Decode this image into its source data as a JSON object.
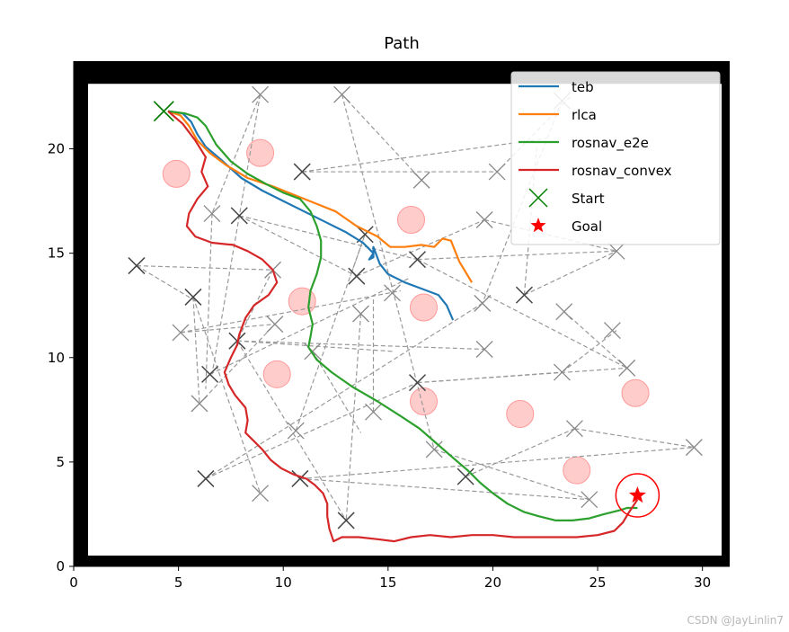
{
  "chart_data": {
    "type": "line",
    "title": "Path",
    "xlabel": "",
    "ylabel": "",
    "xlim": [
      0,
      31.3
    ],
    "ylim": [
      0,
      24.2
    ],
    "xticks": [
      0,
      5,
      10,
      15,
      20,
      25,
      30
    ],
    "yticks": [
      0,
      5,
      10,
      15,
      20
    ],
    "grid": false,
    "legend_position": "top-right",
    "map_bounds": {
      "x": [
        0.6,
        31.0
      ],
      "y": [
        0,
        23.2
      ]
    },
    "series": [
      {
        "name": "teb",
        "color": "#1f77b4",
        "points": [
          [
            4.5,
            21.8
          ],
          [
            5.2,
            21.7
          ],
          [
            5.6,
            21.3
          ],
          [
            5.9,
            20.7
          ],
          [
            6.3,
            20.1
          ],
          [
            7.0,
            19.5
          ],
          [
            8.0,
            18.6
          ],
          [
            9.0,
            18.0
          ],
          [
            10.0,
            17.5
          ],
          [
            11.0,
            17.0
          ],
          [
            12.0,
            16.5
          ],
          [
            13.0,
            16.0
          ],
          [
            13.8,
            15.5
          ],
          [
            14.3,
            15.0
          ],
          [
            14.1,
            14.7
          ],
          [
            14.3,
            14.8
          ],
          [
            14.3,
            15.3
          ],
          [
            14.6,
            14.5
          ],
          [
            15.0,
            14.0
          ],
          [
            15.8,
            13.6
          ],
          [
            16.6,
            13.3
          ],
          [
            17.4,
            13.0
          ],
          [
            17.8,
            12.5
          ],
          [
            18.1,
            11.8
          ]
        ]
      },
      {
        "name": "rlca",
        "color": "#ff7f0e",
        "points": [
          [
            4.5,
            21.8
          ],
          [
            5.1,
            21.6
          ],
          [
            5.5,
            21.1
          ],
          [
            5.9,
            20.4
          ],
          [
            6.5,
            19.8
          ],
          [
            7.3,
            19.2
          ],
          [
            8.3,
            18.6
          ],
          [
            9.5,
            18.2
          ],
          [
            10.5,
            17.8
          ],
          [
            11.5,
            17.4
          ],
          [
            12.5,
            17.0
          ],
          [
            13.5,
            16.3
          ],
          [
            14.5,
            15.8
          ],
          [
            15.1,
            15.3
          ],
          [
            15.8,
            15.3
          ],
          [
            16.6,
            15.4
          ],
          [
            17.2,
            15.3
          ],
          [
            17.6,
            15.7
          ],
          [
            18.0,
            15.6
          ],
          [
            18.4,
            14.6
          ],
          [
            18.7,
            14.1
          ],
          [
            19.0,
            13.6
          ]
        ]
      },
      {
        "name": "rosnav_e2e",
        "color": "#2ca02c",
        "points": [
          [
            4.5,
            21.8
          ],
          [
            5.3,
            21.7
          ],
          [
            5.9,
            21.5
          ],
          [
            6.3,
            21.1
          ],
          [
            6.8,
            20.2
          ],
          [
            7.5,
            19.4
          ],
          [
            8.3,
            18.8
          ],
          [
            9.2,
            18.3
          ],
          [
            10.0,
            17.9
          ],
          [
            10.8,
            17.6
          ],
          [
            11.3,
            17.0
          ],
          [
            11.6,
            16.3
          ],
          [
            11.8,
            15.6
          ],
          [
            11.8,
            14.8
          ],
          [
            11.6,
            14.0
          ],
          [
            11.3,
            13.2
          ],
          [
            11.2,
            12.4
          ],
          [
            11.4,
            11.6
          ],
          [
            11.3,
            11.0
          ],
          [
            11.2,
            10.5
          ],
          [
            11.6,
            9.9
          ],
          [
            12.3,
            9.3
          ],
          [
            13.3,
            8.6
          ],
          [
            14.5,
            7.9
          ],
          [
            15.6,
            7.2
          ],
          [
            16.5,
            6.6
          ],
          [
            17.3,
            5.9
          ],
          [
            18.1,
            5.2
          ],
          [
            18.8,
            4.6
          ],
          [
            19.4,
            4.0
          ],
          [
            20.0,
            3.5
          ],
          [
            20.7,
            3.0
          ],
          [
            21.5,
            2.6
          ],
          [
            22.2,
            2.4
          ],
          [
            23.0,
            2.2
          ],
          [
            23.8,
            2.2
          ],
          [
            24.6,
            2.3
          ],
          [
            25.3,
            2.5
          ],
          [
            26.1,
            2.7
          ],
          [
            26.4,
            2.8
          ],
          [
            26.9,
            2.8
          ]
        ]
      },
      {
        "name": "rosnav_convex",
        "color": "#d62728",
        "points": [
          [
            4.5,
            21.8
          ],
          [
            5.2,
            21.2
          ],
          [
            5.8,
            20.4
          ],
          [
            6.3,
            19.6
          ],
          [
            6.1,
            18.9
          ],
          [
            6.4,
            18.2
          ],
          [
            5.9,
            17.6
          ],
          [
            5.5,
            16.9
          ],
          [
            5.4,
            16.3
          ],
          [
            5.8,
            15.8
          ],
          [
            6.6,
            15.5
          ],
          [
            7.6,
            15.4
          ],
          [
            8.3,
            15.1
          ],
          [
            9.0,
            14.7
          ],
          [
            9.5,
            14.2
          ],
          [
            9.7,
            13.6
          ],
          [
            9.3,
            13.0
          ],
          [
            8.6,
            12.5
          ],
          [
            8.2,
            11.9
          ],
          [
            7.9,
            11.1
          ],
          [
            7.8,
            10.6
          ],
          [
            7.5,
            10.0
          ],
          [
            7.2,
            9.3
          ],
          [
            7.4,
            8.7
          ],
          [
            7.7,
            8.2
          ],
          [
            8.2,
            7.6
          ],
          [
            8.3,
            7.0
          ],
          [
            8.2,
            6.4
          ],
          [
            8.6,
            6.0
          ],
          [
            9.0,
            5.6
          ],
          [
            9.4,
            5.1
          ],
          [
            9.9,
            4.7
          ],
          [
            10.5,
            4.4
          ],
          [
            11.1,
            4.2
          ],
          [
            11.5,
            3.9
          ],
          [
            11.9,
            3.5
          ],
          [
            12.1,
            3.0
          ],
          [
            12.1,
            2.4
          ],
          [
            12.2,
            1.8
          ],
          [
            12.4,
            1.2
          ],
          [
            12.8,
            1.4
          ],
          [
            13.6,
            1.4
          ],
          [
            14.5,
            1.3
          ],
          [
            15.3,
            1.2
          ],
          [
            16.1,
            1.4
          ],
          [
            17.0,
            1.5
          ],
          [
            18.0,
            1.4
          ],
          [
            19.0,
            1.5
          ],
          [
            20.0,
            1.5
          ],
          [
            21.0,
            1.4
          ],
          [
            22.0,
            1.4
          ],
          [
            23.0,
            1.4
          ],
          [
            24.0,
            1.4
          ],
          [
            25.0,
            1.5
          ],
          [
            25.8,
            1.7
          ],
          [
            26.2,
            2.1
          ],
          [
            26.5,
            2.6
          ],
          [
            26.9,
            3.2
          ]
        ]
      }
    ],
    "start": {
      "name": "Start",
      "x": 4.3,
      "y": 21.8,
      "color": "#008000",
      "marker": "x"
    },
    "goal": {
      "name": "Goal",
      "x": 26.9,
      "y": 3.4,
      "color": "#ff0000",
      "marker": "star",
      "radius": 1.0
    },
    "obstacles": {
      "color": "#ff9999",
      "radius": 0.65,
      "points": [
        [
          4.9,
          18.8
        ],
        [
          8.9,
          19.8
        ],
        [
          16.1,
          16.6
        ],
        [
          10.9,
          12.7
        ],
        [
          16.7,
          12.4
        ],
        [
          9.7,
          9.2
        ],
        [
          16.7,
          7.9
        ],
        [
          21.3,
          7.3
        ],
        [
          24.0,
          4.6
        ],
        [
          26.8,
          8.3
        ]
      ]
    },
    "waypoints": {
      "color": "#7f7f7f",
      "dark": [
        [
          4.3,
          21.8
        ],
        [
          10.9,
          18.9
        ],
        [
          7.9,
          16.8
        ],
        [
          13.9,
          15.9
        ],
        [
          3.0,
          14.4
        ],
        [
          13.5,
          13.9
        ],
        [
          5.7,
          12.9
        ],
        [
          7.8,
          10.8
        ],
        [
          6.5,
          9.2
        ],
        [
          16.4,
          8.8
        ],
        [
          21.5,
          13.0
        ],
        [
          6.3,
          4.2
        ],
        [
          10.8,
          4.2
        ],
        [
          13.0,
          2.2
        ],
        [
          18.7,
          4.3
        ],
        [
          16.4,
          14.7
        ]
      ],
      "light": [
        [
          8.9,
          22.6
        ],
        [
          12.8,
          22.6
        ],
        [
          23.3,
          22.3
        ],
        [
          16.6,
          18.5
        ],
        [
          20.2,
          18.9
        ],
        [
          6.6,
          16.9
        ],
        [
          9.5,
          14.2
        ],
        [
          15.2,
          13.1
        ],
        [
          19.6,
          16.6
        ],
        [
          25.9,
          15.1
        ],
        [
          19.5,
          12.6
        ],
        [
          9.6,
          11.6
        ],
        [
          5.1,
          11.2
        ],
        [
          13.7,
          12.1
        ],
        [
          11.4,
          10.3
        ],
        [
          19.6,
          10.4
        ],
        [
          23.4,
          12.2
        ],
        [
          25.7,
          11.3
        ],
        [
          26.4,
          9.5
        ],
        [
          23.3,
          9.3
        ],
        [
          6.0,
          7.8
        ],
        [
          14.3,
          7.4
        ],
        [
          10.6,
          6.5
        ],
        [
          17.2,
          5.6
        ],
        [
          23.9,
          6.6
        ],
        [
          29.6,
          5.7
        ],
        [
          24.6,
          3.2
        ],
        [
          8.9,
          3.5
        ]
      ]
    },
    "dashed_lines": [
      [
        [
          8.9,
          22.6
        ],
        [
          6.6,
          9.2
        ]
      ],
      [
        [
          8.9,
          22.6
        ],
        [
          6.6,
          16.9
        ]
      ],
      [
        [
          6.6,
          16.9
        ],
        [
          6.3,
          8.5
        ]
      ],
      [
        [
          12.8,
          22.6
        ],
        [
          17.2,
          5.6
        ]
      ],
      [
        [
          12.8,
          22.6
        ],
        [
          16.6,
          18.5
        ]
      ],
      [
        [
          23.3,
          22.3
        ],
        [
          19.5,
          12.6
        ]
      ],
      [
        [
          10.9,
          18.9
        ],
        [
          22.6,
          20.5
        ]
      ],
      [
        [
          10.9,
          18.9
        ],
        [
          20.2,
          18.9
        ]
      ],
      [
        [
          20.2,
          18.9
        ],
        [
          23.8,
          22.6
        ]
      ],
      [
        [
          7.9,
          16.8
        ],
        [
          13.5,
          13.9
        ]
      ],
      [
        [
          7.9,
          16.8
        ],
        [
          16.4,
          14.7
        ]
      ],
      [
        [
          13.9,
          15.9
        ],
        [
          13.2,
          13.9
        ]
      ],
      [
        [
          13.5,
          13.9
        ],
        [
          19.6,
          16.6
        ]
      ],
      [
        [
          19.6,
          16.6
        ],
        [
          25.9,
          15.1
        ]
      ],
      [
        [
          16.4,
          14.7
        ],
        [
          25.9,
          15.1
        ]
      ],
      [
        [
          16.4,
          14.7
        ],
        [
          26.4,
          9.5
        ]
      ],
      [
        [
          21.5,
          13.0
        ],
        [
          22.1,
          20.2
        ]
      ],
      [
        [
          21.5,
          13.0
        ],
        [
          25.9,
          15.1
        ]
      ],
      [
        [
          3.0,
          14.4
        ],
        [
          9.5,
          14.2
        ]
      ],
      [
        [
          3.0,
          14.4
        ],
        [
          6.0,
          12.6
        ]
      ],
      [
        [
          5.7,
          12.9
        ],
        [
          6.0,
          7.8
        ]
      ],
      [
        [
          5.7,
          12.9
        ],
        [
          8.9,
          3.5
        ]
      ],
      [
        [
          5.1,
          11.2
        ],
        [
          9.6,
          11.6
        ]
      ],
      [
        [
          5.1,
          11.2
        ],
        [
          15.6,
          13.2
        ]
      ],
      [
        [
          9.5,
          14.2
        ],
        [
          7.8,
          10.8
        ]
      ],
      [
        [
          7.8,
          10.8
        ],
        [
          19.6,
          10.4
        ]
      ],
      [
        [
          7.8,
          10.8
        ],
        [
          15.2,
          10.3
        ]
      ],
      [
        [
          7.8,
          10.8
        ],
        [
          13.0,
          2.2
        ]
      ],
      [
        [
          6.5,
          9.2
        ],
        [
          16.0,
          13.8
        ]
      ],
      [
        [
          13.7,
          12.1
        ],
        [
          13.0,
          2.2
        ]
      ],
      [
        [
          11.4,
          10.3
        ],
        [
          13.7,
          6.4
        ]
      ],
      [
        [
          6.3,
          4.2
        ],
        [
          19.5,
          12.6
        ]
      ],
      [
        [
          6.3,
          4.2
        ],
        [
          16.4,
          8.8
        ]
      ],
      [
        [
          10.6,
          6.5
        ],
        [
          13.9,
          15.9
        ]
      ],
      [
        [
          16.4,
          8.8
        ],
        [
          23.3,
          9.3
        ]
      ],
      [
        [
          16.4,
          8.8
        ],
        [
          26.4,
          9.5
        ]
      ],
      [
        [
          23.3,
          9.3
        ],
        [
          25.9,
          11.3
        ]
      ],
      [
        [
          23.4,
          12.2
        ],
        [
          26.4,
          9.5
        ]
      ],
      [
        [
          10.8,
          4.2
        ],
        [
          24.6,
          3.2
        ]
      ],
      [
        [
          10.8,
          4.2
        ],
        [
          29.6,
          5.7
        ]
      ],
      [
        [
          18.7,
          4.3
        ],
        [
          23.9,
          6.6
        ]
      ],
      [
        [
          23.9,
          6.6
        ],
        [
          29.6,
          5.7
        ]
      ],
      [
        [
          17.2,
          5.6
        ],
        [
          24.6,
          3.2
        ]
      ],
      [
        [
          14.3,
          7.4
        ],
        [
          14.3,
          12.9
        ]
      ],
      [
        [
          6.0,
          7.8
        ],
        [
          9.6,
          11.6
        ]
      ]
    ]
  },
  "watermark": "CSDN @JayLinlin7"
}
